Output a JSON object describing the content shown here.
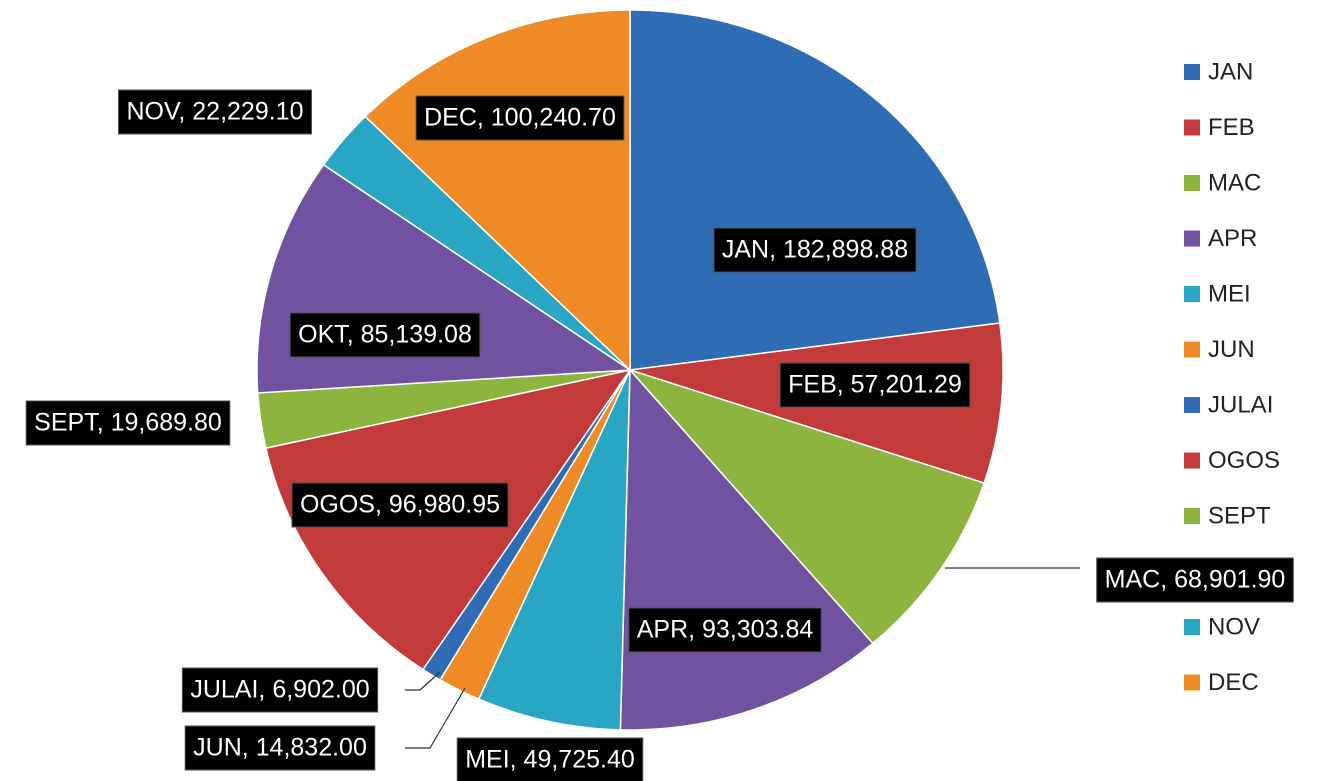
{
  "chart_data": {
    "type": "pie",
    "categories": [
      "JAN",
      "FEB",
      "MAC",
      "APR",
      "MEI",
      "JUN",
      "JULAI",
      "OGOS",
      "SEPT",
      "OKT",
      "NOV",
      "DEC"
    ],
    "values": [
      182898.88,
      57201.29,
      68901.9,
      93303.84,
      49725.4,
      14832.0,
      6902.0,
      96980.95,
      19689.8,
      85139.08,
      22229.1,
      100240.7
    ],
    "value_labels": [
      "JAN,  182,898.88",
      "FEB,  57,201.29",
      "MAC,  68,901.90",
      "APR,  93,303.84",
      "MEI,  49,725.40",
      "JUN,  14,832.00",
      "JULAI,  6,902.00",
      "OGOS,  96,980.95",
      "SEPT,  19,689.80",
      "OKT,  85,139.08",
      "NOV,  22,229.10",
      "DEC,  100,240.70"
    ],
    "colors": [
      "#2e6cb5",
      "#c23a3a",
      "#8cb43f",
      "#7152a1",
      "#2aa6c5",
      "#ee8b27",
      "#2e6cb5",
      "#c23a3a",
      "#8cb43f",
      "#7152a1",
      "#2aa6c5",
      "#ee8b27"
    ],
    "legend": "right"
  }
}
